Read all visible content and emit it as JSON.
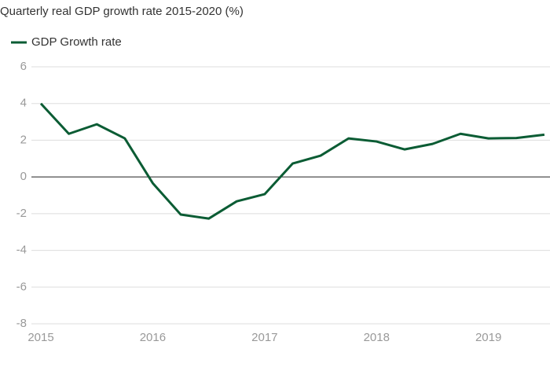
{
  "chart_data": {
    "type": "line",
    "title": "Quarterly real GDP growth rate 2015-2020 (%)",
    "x": [
      2015,
      2015.25,
      2015.5,
      2015.75,
      2016,
      2016.25,
      2016.5,
      2016.75,
      2017,
      2017.25,
      2017.5,
      2017.75,
      2018,
      2018.25,
      2018.5,
      2018.75,
      2019,
      2019.25,
      2019.5
    ],
    "series": [
      {
        "name": "GDP Growth rate",
        "color": "#0b5c34",
        "values": [
          4.0,
          2.35,
          2.87,
          2.1,
          -0.34,
          -2.05,
          -2.27,
          -1.33,
          -0.94,
          0.73,
          1.16,
          2.1,
          1.93,
          1.5,
          1.8,
          2.35,
          2.1,
          2.12,
          2.3
        ]
      }
    ],
    "xlim": [
      2015,
      2019.55
    ],
    "xticks": [
      2015,
      2016,
      2017,
      2018,
      2019
    ],
    "ylim": [
      -8,
      6
    ],
    "yticks": [
      -8,
      -6,
      -4,
      -2,
      0,
      2,
      4,
      6
    ],
    "grid": true
  }
}
